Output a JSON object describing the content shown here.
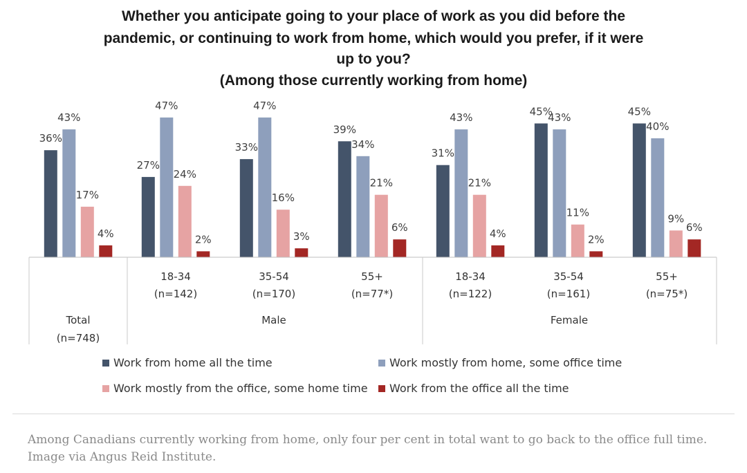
{
  "chart_data": {
    "type": "bar",
    "title_lines": [
      "Whether you anticipate going to your place of work as you did before the",
      "pandemic, or continuing to work from home, which would you prefer, if it were",
      "up to you?",
      "(Among those currently working from home)"
    ],
    "groups": [
      {
        "label": "Total",
        "sub": "(n=748)",
        "values": [
          36,
          43,
          17,
          4
        ]
      },
      {
        "label": "18-34",
        "sub": "(n=142)",
        "values": [
          27,
          47,
          24,
          2
        ]
      },
      {
        "label": "35-54",
        "sub": "(n=170)",
        "values": [
          33,
          47,
          16,
          3
        ]
      },
      {
        "label": "55+",
        "sub": "(n=77*)",
        "values": [
          39,
          34,
          21,
          6
        ]
      },
      {
        "label": "18-34",
        "sub": "(n=122)",
        "values": [
          31,
          43,
          21,
          4
        ]
      },
      {
        "label": "35-54",
        "sub": "(n=161)",
        "values": [
          45,
          43,
          11,
          2
        ]
      },
      {
        "label": "55+",
        "sub": "(n=75*)",
        "values": [
          45,
          40,
          9,
          6
        ]
      }
    ],
    "super_groups": [
      "Male",
      "Female"
    ],
    "series": [
      {
        "name": "Work from home all the time",
        "color": "#44546a"
      },
      {
        "name": "Work mostly from home, some office time",
        "color": "#8e9fbc"
      },
      {
        "name": "Work mostly from the office, some home time",
        "color": "#e6a3a3"
      },
      {
        "name": "Work from the office all the time",
        "color": "#a32724"
      }
    ],
    "value_suffix": "%",
    "ylim": [
      0,
      50
    ],
    "legend_position": "bottom",
    "grid": false
  },
  "caption": "Among Canadians currently working from home, only four per cent in total want to go back to the office full time. Image via Angus Reid Institute."
}
